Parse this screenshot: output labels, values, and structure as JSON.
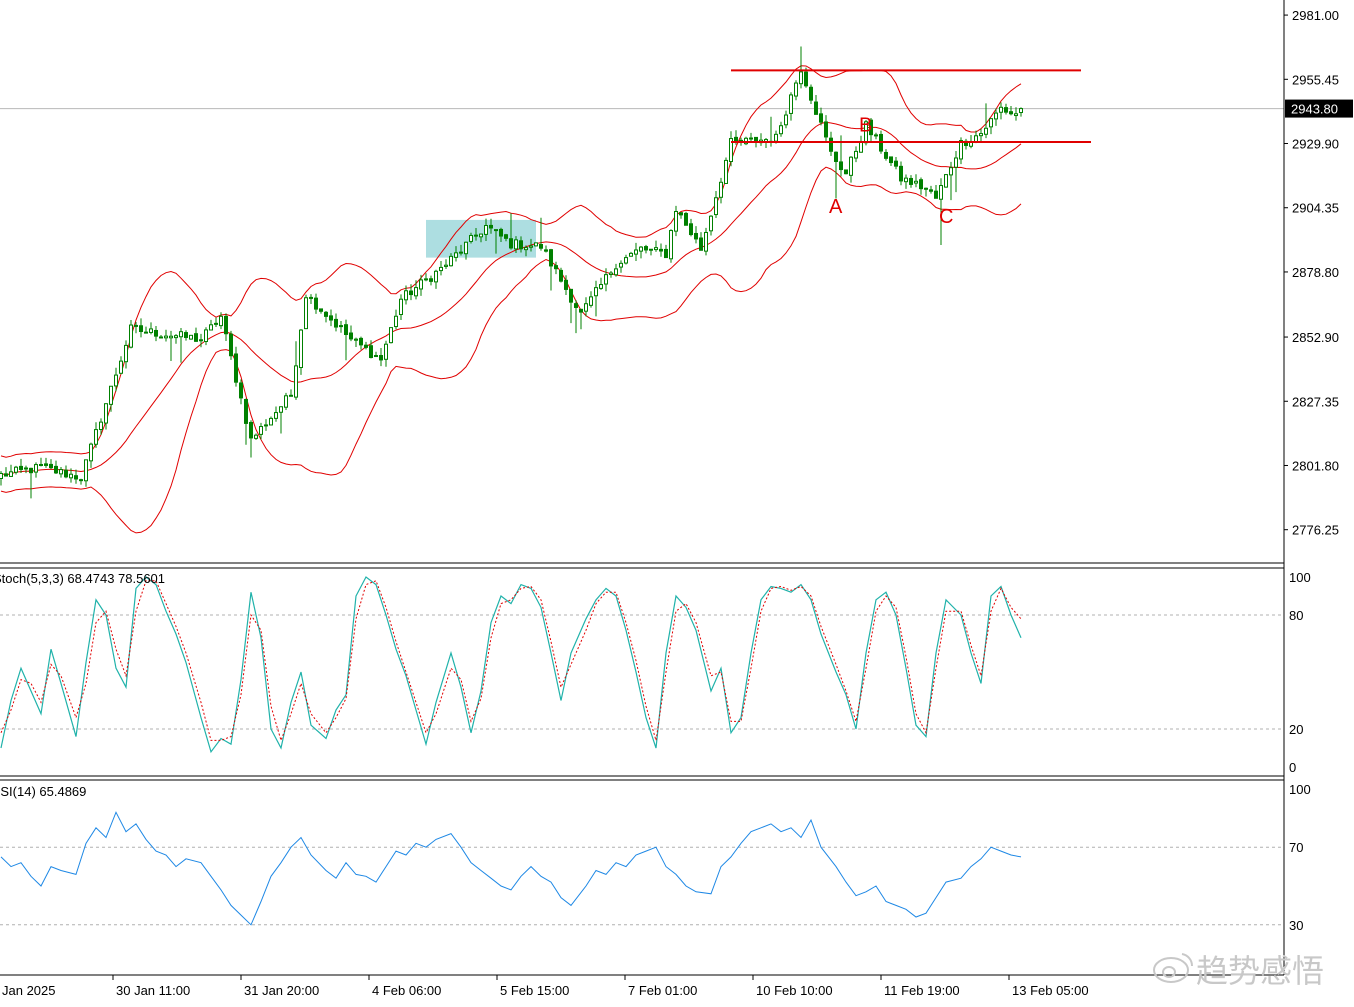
{
  "colors": {
    "bull": "#008000",
    "bear": "#008000",
    "band": "#e00000",
    "hline": "#e00000",
    "price_line": "#b8b8b8",
    "highlight": "#9fd8dc",
    "stoch_main": "#20b2aa",
    "stoch_signal": "#e00000",
    "rsi": "#1e88e5",
    "level_line": "#b0b0b0",
    "annotation": "#e00000",
    "watermark": "#c8c8c8"
  },
  "chart_data": [
    {
      "type": "candlestick",
      "title": "",
      "ylim": [
        2763.0,
        2987.0
      ],
      "y_ticks": [
        "2981.00",
        "2955.45",
        "2929.90",
        "2904.35",
        "2878.80",
        "2852.90",
        "2827.35",
        "2801.80",
        "2776.25"
      ],
      "current_price_label": "2943.80",
      "current_price": 2943.8,
      "bollinger_bands": "shown",
      "horizontal_lines": [
        {
          "price": 2959.0,
          "from_candle": 146,
          "to_candle": 216
        },
        {
          "price": 2930.5,
          "from_candle": 146,
          "to_candle": 218
        }
      ],
      "highlight_zone": {
        "from_candle": 85,
        "to_candle": 107,
        "low": 2884.5,
        "high": 2899.5
      },
      "annotations": [
        {
          "text": "A",
          "candle": 167,
          "price": 2905.0
        },
        {
          "text": "B",
          "candle": 173,
          "price": 2937.5
        },
        {
          "text": "C",
          "candle": 189,
          "price": 2901.0
        }
      ],
      "pivots": [
        [
          0,
          2798
        ],
        [
          8,
          2801
        ],
        [
          16,
          2797
        ],
        [
          26,
          2856
        ],
        [
          40,
          2852
        ],
        [
          44,
          2861
        ],
        [
          50,
          2812
        ],
        [
          58,
          2830
        ],
        [
          61,
          2870
        ],
        [
          70,
          2852
        ],
        [
          76,
          2844
        ],
        [
          80,
          2868
        ],
        [
          88,
          2880
        ],
        [
          97,
          2897
        ],
        [
          102,
          2890
        ],
        [
          108,
          2889
        ],
        [
          116,
          2862
        ],
        [
          123,
          2882
        ],
        [
          128,
          2888
        ],
        [
          133,
          2886
        ],
        [
          135,
          2904
        ],
        [
          140,
          2888
        ],
        [
          146,
          2930
        ],
        [
          155,
          2932
        ],
        [
          160,
          2960
        ],
        [
          166,
          2926
        ],
        [
          169,
          2918
        ],
        [
          173,
          2937
        ],
        [
          180,
          2916
        ],
        [
          185,
          2912
        ],
        [
          187,
          2908
        ],
        [
          192,
          2930
        ],
        [
          196,
          2934
        ],
        [
          200,
          2944
        ],
        [
          202,
          2942
        ]
      ],
      "x_ticks": [
        "Jan 2025",
        "30 Jan 11:00",
        "31 Jan 20:00",
        "4 Feb 06:00",
        "5 Feb 15:00",
        "7 Feb 01:00",
        "10 Feb 10:00",
        "11 Feb 19:00",
        "13 Feb 05:00"
      ]
    },
    {
      "type": "line",
      "label": "Stoch(5,3,3) 68.4743 78.5601",
      "ylim": [
        0,
        100
      ],
      "y_ticks": [
        "100",
        "80",
        "20",
        "0"
      ],
      "levels": [
        80,
        20
      ],
      "series": [
        {
          "name": "main",
          "values": [
            10,
            35,
            52,
            40,
            28,
            62,
            44,
            16,
            55,
            88,
            80,
            52,
            42,
            94,
            100,
            96,
            82,
            70,
            55,
            26,
            8,
            15,
            12,
            46,
            92,
            68,
            20,
            10,
            34,
            50,
            22,
            15,
            30,
            38,
            90,
            100,
            96,
            80,
            62,
            48,
            30,
            12,
            34,
            60,
            42,
            18,
            40,
            76,
            90,
            86,
            96,
            94,
            84,
            60,
            35,
            60,
            78,
            88,
            94,
            90,
            72,
            50,
            26,
            10,
            60,
            90,
            84,
            72,
            40,
            52,
            18,
            26,
            60,
            88,
            95,
            94,
            92,
            96,
            88,
            70,
            50,
            38,
            20,
            60,
            88,
            92,
            80,
            52,
            22,
            16,
            60,
            88,
            80,
            60,
            44,
            90,
            95,
            80,
            68
          ]
        },
        {
          "name": "signal",
          "values": [
            18,
            30,
            46,
            44,
            34,
            54,
            48,
            26,
            44,
            76,
            82,
            62,
            48,
            82,
            98,
            98,
            86,
            74,
            60,
            34,
            14,
            14,
            16,
            38,
            80,
            72,
            32,
            14,
            28,
            44,
            28,
            18,
            26,
            36,
            78,
            96,
            98,
            84,
            66,
            50,
            34,
            18,
            28,
            52,
            46,
            24,
            36,
            68,
            86,
            88,
            94,
            95,
            88,
            66,
            42,
            54,
            72,
            86,
            92,
            92,
            76,
            56,
            32,
            14,
            50,
            82,
            86,
            76,
            48,
            50,
            24,
            24,
            52,
            82,
            94,
            95,
            93,
            95,
            90,
            74,
            54,
            40,
            24,
            52,
            82,
            90,
            84,
            58,
            28,
            18,
            52,
            82,
            82,
            64,
            48,
            82,
            94,
            84,
            78
          ]
        }
      ]
    },
    {
      "type": "line",
      "label": "RSI(14) 65.4869",
      "ylim": [
        0,
        100
      ],
      "y_ticks": [
        "100",
        "70",
        "30"
      ],
      "levels": [
        70,
        30
      ],
      "series": [
        {
          "name": "",
          "values": [
            65,
            60,
            62,
            55,
            50,
            60,
            58,
            56,
            72,
            80,
            75,
            88,
            78,
            82,
            74,
            68,
            66,
            60,
            64,
            62,
            55,
            48,
            40,
            35,
            30,
            42,
            55,
            62,
            70,
            75,
            66,
            58,
            54,
            62,
            56,
            55,
            52,
            60,
            68,
            66,
            72,
            70,
            74,
            77,
            70,
            62,
            58,
            54,
            50,
            48,
            55,
            60,
            55,
            52,
            44,
            40,
            50,
            58,
            56,
            62,
            60,
            66,
            68,
            70,
            60,
            56,
            50,
            47,
            46,
            60,
            65,
            72,
            78,
            80,
            82,
            78,
            80,
            75,
            84,
            70,
            60,
            52,
            45,
            47,
            50,
            42,
            40,
            38,
            34,
            36,
            44,
            52,
            54,
            60,
            64,
            70,
            68,
            66,
            65
          ]
        }
      ]
    }
  ],
  "watermark": "趋势感悟"
}
